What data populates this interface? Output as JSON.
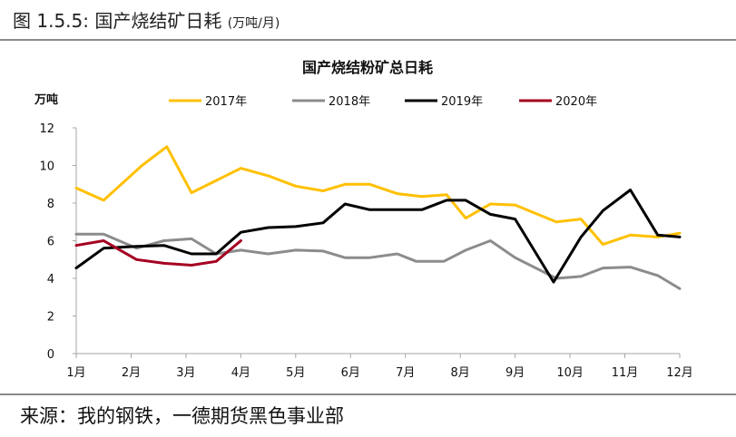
{
  "header": {
    "figure_label": "图 1.5.5:",
    "figure_title": "国产烧结矿日耗",
    "figure_unit": "(万吨/月)"
  },
  "source": "来源：我的钢铁，一德期货黑色事业部",
  "chart_data": {
    "type": "line",
    "title": "国产烧结粉矿总日耗",
    "ylabel": "万吨",
    "xlabel": "",
    "ylim": [
      0,
      12
    ],
    "yticks": [
      0,
      2,
      4,
      6,
      8,
      10,
      12
    ],
    "x_range": [
      1,
      12
    ],
    "month_labels": [
      "1月",
      "2月",
      "3月",
      "4月",
      "5月",
      "6月",
      "7月",
      "8月",
      "9月",
      "10月",
      "11月",
      "12月"
    ],
    "legend_position": "top",
    "grid": false,
    "series": [
      {
        "name": "2017年",
        "color": "#FFC000",
        "points": [
          [
            1.0,
            8.8
          ],
          [
            1.5,
            8.15
          ],
          [
            2.2,
            10.0
          ],
          [
            2.65,
            11.0
          ],
          [
            3.1,
            8.55
          ],
          [
            3.55,
            9.2
          ],
          [
            4.0,
            9.85
          ],
          [
            4.5,
            9.45
          ],
          [
            5.0,
            8.9
          ],
          [
            5.5,
            8.65
          ],
          [
            5.9,
            9.0
          ],
          [
            6.35,
            9.0
          ],
          [
            6.85,
            8.5
          ],
          [
            7.3,
            8.35
          ],
          [
            7.75,
            8.45
          ],
          [
            8.1,
            7.2
          ],
          [
            8.55,
            7.95
          ],
          [
            9.0,
            7.9
          ],
          [
            9.75,
            7.0
          ],
          [
            10.2,
            7.15
          ],
          [
            10.6,
            5.8
          ],
          [
            11.1,
            6.3
          ],
          [
            11.6,
            6.2
          ],
          [
            12.0,
            6.4
          ]
        ]
      },
      {
        "name": "2018年",
        "color": "#8C8C8C",
        "points": [
          [
            1.0,
            6.35
          ],
          [
            1.5,
            6.35
          ],
          [
            2.1,
            5.6
          ],
          [
            2.6,
            6.0
          ],
          [
            3.1,
            6.1
          ],
          [
            3.55,
            5.3
          ],
          [
            4.0,
            5.5
          ],
          [
            4.5,
            5.3
          ],
          [
            5.0,
            5.5
          ],
          [
            5.5,
            5.45
          ],
          [
            5.9,
            5.1
          ],
          [
            6.35,
            5.1
          ],
          [
            6.85,
            5.3
          ],
          [
            7.2,
            4.9
          ],
          [
            7.7,
            4.9
          ],
          [
            8.1,
            5.5
          ],
          [
            8.55,
            6.0
          ],
          [
            9.0,
            5.1
          ],
          [
            9.75,
            4.0
          ],
          [
            10.2,
            4.1
          ],
          [
            10.6,
            4.55
          ],
          [
            11.1,
            4.6
          ],
          [
            11.6,
            4.15
          ],
          [
            12.0,
            3.45
          ]
        ]
      },
      {
        "name": "2019年",
        "color": "#000000",
        "points": [
          [
            1.0,
            4.55
          ],
          [
            1.5,
            5.6
          ],
          [
            2.1,
            5.7
          ],
          [
            2.6,
            5.75
          ],
          [
            3.1,
            5.3
          ],
          [
            3.55,
            5.3
          ],
          [
            4.0,
            6.45
          ],
          [
            4.5,
            6.7
          ],
          [
            5.0,
            6.75
          ],
          [
            5.5,
            6.95
          ],
          [
            5.9,
            7.95
          ],
          [
            6.35,
            7.65
          ],
          [
            6.85,
            7.65
          ],
          [
            7.3,
            7.65
          ],
          [
            7.75,
            8.15
          ],
          [
            8.1,
            8.15
          ],
          [
            8.55,
            7.4
          ],
          [
            9.0,
            7.15
          ],
          [
            9.7,
            3.8
          ],
          [
            10.2,
            6.2
          ],
          [
            10.6,
            7.6
          ],
          [
            11.1,
            8.7
          ],
          [
            11.6,
            6.3
          ],
          [
            12.0,
            6.2
          ]
        ]
      },
      {
        "name": "2020年",
        "color": "#A50021",
        "points": [
          [
            1.0,
            5.75
          ],
          [
            1.5,
            6.0
          ],
          [
            2.1,
            5.0
          ],
          [
            2.6,
            4.8
          ],
          [
            3.1,
            4.7
          ],
          [
            3.55,
            4.9
          ],
          [
            4.0,
            6.0
          ]
        ]
      }
    ]
  }
}
